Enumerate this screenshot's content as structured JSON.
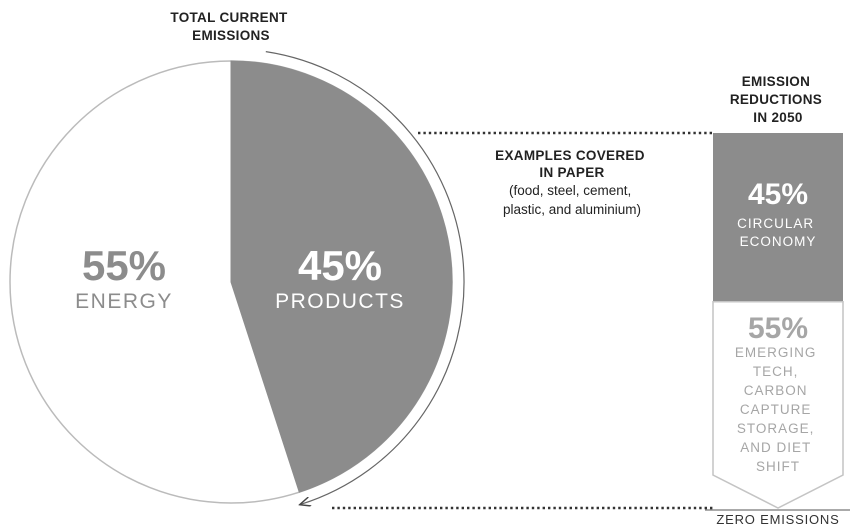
{
  "chart_data": {
    "type": "pie",
    "title": "TOTAL CURRENT EMISSIONS",
    "slices": [
      {
        "name": "PRODUCTS",
        "value": 45,
        "label": "45%",
        "color": "#8c8c8c"
      },
      {
        "name": "ENERGY",
        "value": 55,
        "label": "55%",
        "color": "#ffffff"
      }
    ],
    "annotation": {
      "title": "EXAMPLES COVERED IN PAPER",
      "detail": "(food, steel, cement, plastic, and aluminium)"
    },
    "reduction_bar": {
      "title": "EMISSION REDUCTIONS IN 2050",
      "segments": [
        {
          "name": "CIRCULAR ECONOMY",
          "value": 45,
          "label": "45%",
          "color": "#8c8c8c"
        },
        {
          "name": "EMERGING TECH, CARBON CAPTURE STORAGE, AND DIET SHIFT",
          "value": 55,
          "label": "55%",
          "color": "#ffffff"
        }
      ],
      "end_label": "ZERO EMISSIONS"
    }
  },
  "text": {
    "pie_title": [
      "TOTAL CURRENT",
      "EMISSIONS"
    ],
    "products_pct": "45%",
    "products_label": "PRODUCTS",
    "energy_pct": "55%",
    "energy_label": "ENERGY",
    "annot_title": [
      "EXAMPLES COVERED",
      "IN PAPER"
    ],
    "annot_detail": [
      "(food, steel, cement,",
      "plastic, and aluminium)"
    ],
    "bar_title": [
      "EMISSION",
      "REDUCTIONS",
      "IN 2050"
    ],
    "circ_pct": "45%",
    "circ_label": [
      "CIRCULAR",
      "ECONOMY"
    ],
    "emerg_pct": "55%",
    "emerg_label": [
      "EMERGING",
      "TECH,",
      "CARBON",
      "CAPTURE",
      "STORAGE,",
      "AND DIET",
      "SHIFT"
    ],
    "zero": "ZERO EMISSIONS"
  }
}
